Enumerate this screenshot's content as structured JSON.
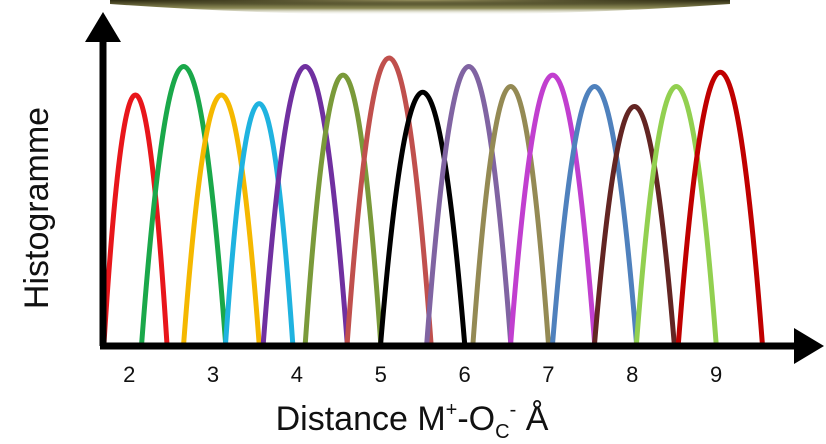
{
  "chart_data": {
    "type": "line",
    "xlabel": {
      "prefix": "Distance M",
      "sup1": "+",
      "mid": "-O",
      "sub": "C",
      "sup2": "-",
      "suffix": " Å"
    },
    "ylabel": "Histogramme",
    "xticks": [
      "2",
      "3",
      "4",
      "5",
      "6",
      "7",
      "8",
      "9"
    ],
    "xlim": [
      1.7,
      10.0
    ],
    "ylim": [
      0,
      1.0
    ],
    "grid": false,
    "legend": "none",
    "series": [
      {
        "color": "#e8161b",
        "x0": 1.7,
        "x1": 2.45,
        "peak": 0.87
      },
      {
        "color": "#1aa84a",
        "x0": 2.15,
        "x1": 3.15,
        "peak": 0.97
      },
      {
        "color": "#f5b800",
        "x0": 2.65,
        "x1": 3.55,
        "peak": 0.87
      },
      {
        "color": "#1fb3e0",
        "x0": 3.15,
        "x1": 3.95,
        "peak": 0.84
      },
      {
        "color": "#7030a0",
        "x0": 3.6,
        "x1": 4.6,
        "peak": 0.97
      },
      {
        "color": "#7a9a3a",
        "x0": 4.1,
        "x1": 5.0,
        "peak": 0.94
      },
      {
        "color": "#c0504d",
        "x0": 4.6,
        "x1": 5.6,
        "peak": 1.0
      },
      {
        "color": "#000000",
        "x0": 5.0,
        "x1": 6.0,
        "peak": 0.88
      },
      {
        "color": "#8064a2",
        "x0": 5.55,
        "x1": 6.55,
        "peak": 0.97
      },
      {
        "color": "#948a54",
        "x0": 6.1,
        "x1": 7.0,
        "peak": 0.9
      },
      {
        "color": "#c13fcf",
        "x0": 6.55,
        "x1": 7.55,
        "peak": 0.94
      },
      {
        "color": "#4f81bd",
        "x0": 7.05,
        "x1": 8.05,
        "peak": 0.9
      },
      {
        "color": "#632523",
        "x0": 7.55,
        "x1": 8.5,
        "peak": 0.83
      },
      {
        "color": "#92d050",
        "x0": 8.05,
        "x1": 9.0,
        "peak": 0.9
      },
      {
        "color": "#c00000",
        "x0": 8.55,
        "x1": 9.55,
        "peak": 0.95
      }
    ]
  }
}
